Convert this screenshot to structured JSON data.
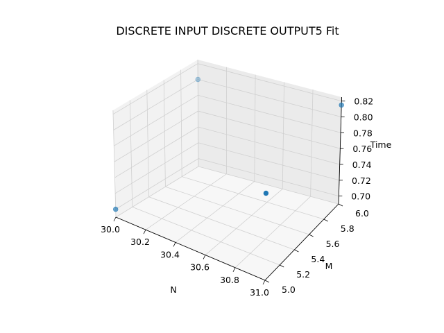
{
  "chart_data": {
    "type": "scatter",
    "projection": "3d",
    "title": "DISCRETE INPUT DISCRETE OUTPUT5 Fit",
    "xlabel": "N",
    "ylabel": "M",
    "zlabel": "Time",
    "xlim": [
      30.0,
      31.0
    ],
    "ylim": [
      5.0,
      6.0
    ],
    "zlim": [
      0.69,
      0.825
    ],
    "x_ticks": [
      "30.0",
      "30.2",
      "30.4",
      "30.6",
      "30.8",
      "31.0"
    ],
    "y_ticks": [
      "5.0",
      "5.2",
      "5.4",
      "5.6",
      "5.8",
      "6.0"
    ],
    "z_ticks": [
      "0.70",
      "0.72",
      "0.74",
      "0.76",
      "0.78",
      "0.80",
      "0.82"
    ],
    "grid": true,
    "marker_color": "#1f77b4",
    "points": [
      {
        "x": 30.0,
        "y": 5.0,
        "z": 0.7
      },
      {
        "x": 31.0,
        "y": 5.0,
        "z": 0.8
      },
      {
        "x": 30.0,
        "y": 6.0,
        "z": 0.8
      },
      {
        "x": 31.0,
        "y": 6.0,
        "z": 0.815
      }
    ]
  }
}
